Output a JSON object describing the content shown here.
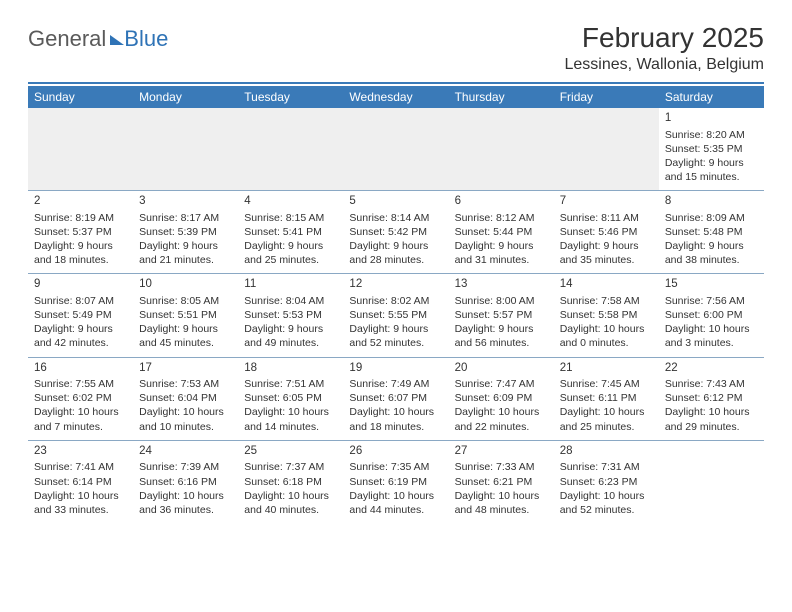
{
  "logo": {
    "part1": "General",
    "part2": "Blue"
  },
  "title": "February 2025",
  "location": "Lessines, Wallonia, Belgium",
  "day_headers": [
    "Sunday",
    "Monday",
    "Tuesday",
    "Wednesday",
    "Thursday",
    "Friday",
    "Saturday"
  ],
  "colors": {
    "header_bg": "#3a7ab8",
    "header_text": "#ffffff",
    "divider": "#3a7ab8",
    "blank_row_bg": "#efefef",
    "cell_border": "#8aa8c4",
    "logo_gray": "#5a5a5a",
    "logo_blue": "#2f73b6"
  },
  "weeks": [
    [
      {},
      {},
      {},
      {},
      {},
      {},
      {
        "n": "1",
        "sr": "Sunrise: 8:20 AM",
        "ss": "Sunset: 5:35 PM",
        "dl": "Daylight: 9 hours and 15 minutes."
      }
    ],
    [
      {
        "n": "2",
        "sr": "Sunrise: 8:19 AM",
        "ss": "Sunset: 5:37 PM",
        "dl": "Daylight: 9 hours and 18 minutes."
      },
      {
        "n": "3",
        "sr": "Sunrise: 8:17 AM",
        "ss": "Sunset: 5:39 PM",
        "dl": "Daylight: 9 hours and 21 minutes."
      },
      {
        "n": "4",
        "sr": "Sunrise: 8:15 AM",
        "ss": "Sunset: 5:41 PM",
        "dl": "Daylight: 9 hours and 25 minutes."
      },
      {
        "n": "5",
        "sr": "Sunrise: 8:14 AM",
        "ss": "Sunset: 5:42 PM",
        "dl": "Daylight: 9 hours and 28 minutes."
      },
      {
        "n": "6",
        "sr": "Sunrise: 8:12 AM",
        "ss": "Sunset: 5:44 PM",
        "dl": "Daylight: 9 hours and 31 minutes."
      },
      {
        "n": "7",
        "sr": "Sunrise: 8:11 AM",
        "ss": "Sunset: 5:46 PM",
        "dl": "Daylight: 9 hours and 35 minutes."
      },
      {
        "n": "8",
        "sr": "Sunrise: 8:09 AM",
        "ss": "Sunset: 5:48 PM",
        "dl": "Daylight: 9 hours and 38 minutes."
      }
    ],
    [
      {
        "n": "9",
        "sr": "Sunrise: 8:07 AM",
        "ss": "Sunset: 5:49 PM",
        "dl": "Daylight: 9 hours and 42 minutes."
      },
      {
        "n": "10",
        "sr": "Sunrise: 8:05 AM",
        "ss": "Sunset: 5:51 PM",
        "dl": "Daylight: 9 hours and 45 minutes."
      },
      {
        "n": "11",
        "sr": "Sunrise: 8:04 AM",
        "ss": "Sunset: 5:53 PM",
        "dl": "Daylight: 9 hours and 49 minutes."
      },
      {
        "n": "12",
        "sr": "Sunrise: 8:02 AM",
        "ss": "Sunset: 5:55 PM",
        "dl": "Daylight: 9 hours and 52 minutes."
      },
      {
        "n": "13",
        "sr": "Sunrise: 8:00 AM",
        "ss": "Sunset: 5:57 PM",
        "dl": "Daylight: 9 hours and 56 minutes."
      },
      {
        "n": "14",
        "sr": "Sunrise: 7:58 AM",
        "ss": "Sunset: 5:58 PM",
        "dl": "Daylight: 10 hours and 0 minutes."
      },
      {
        "n": "15",
        "sr": "Sunrise: 7:56 AM",
        "ss": "Sunset: 6:00 PM",
        "dl": "Daylight: 10 hours and 3 minutes."
      }
    ],
    [
      {
        "n": "16",
        "sr": "Sunrise: 7:55 AM",
        "ss": "Sunset: 6:02 PM",
        "dl": "Daylight: 10 hours and 7 minutes."
      },
      {
        "n": "17",
        "sr": "Sunrise: 7:53 AM",
        "ss": "Sunset: 6:04 PM",
        "dl": "Daylight: 10 hours and 10 minutes."
      },
      {
        "n": "18",
        "sr": "Sunrise: 7:51 AM",
        "ss": "Sunset: 6:05 PM",
        "dl": "Daylight: 10 hours and 14 minutes."
      },
      {
        "n": "19",
        "sr": "Sunrise: 7:49 AM",
        "ss": "Sunset: 6:07 PM",
        "dl": "Daylight: 10 hours and 18 minutes."
      },
      {
        "n": "20",
        "sr": "Sunrise: 7:47 AM",
        "ss": "Sunset: 6:09 PM",
        "dl": "Daylight: 10 hours and 22 minutes."
      },
      {
        "n": "21",
        "sr": "Sunrise: 7:45 AM",
        "ss": "Sunset: 6:11 PM",
        "dl": "Daylight: 10 hours and 25 minutes."
      },
      {
        "n": "22",
        "sr": "Sunrise: 7:43 AM",
        "ss": "Sunset: 6:12 PM",
        "dl": "Daylight: 10 hours and 29 minutes."
      }
    ],
    [
      {
        "n": "23",
        "sr": "Sunrise: 7:41 AM",
        "ss": "Sunset: 6:14 PM",
        "dl": "Daylight: 10 hours and 33 minutes."
      },
      {
        "n": "24",
        "sr": "Sunrise: 7:39 AM",
        "ss": "Sunset: 6:16 PM",
        "dl": "Daylight: 10 hours and 36 minutes."
      },
      {
        "n": "25",
        "sr": "Sunrise: 7:37 AM",
        "ss": "Sunset: 6:18 PM",
        "dl": "Daylight: 10 hours and 40 minutes."
      },
      {
        "n": "26",
        "sr": "Sunrise: 7:35 AM",
        "ss": "Sunset: 6:19 PM",
        "dl": "Daylight: 10 hours and 44 minutes."
      },
      {
        "n": "27",
        "sr": "Sunrise: 7:33 AM",
        "ss": "Sunset: 6:21 PM",
        "dl": "Daylight: 10 hours and 48 minutes."
      },
      {
        "n": "28",
        "sr": "Sunrise: 7:31 AM",
        "ss": "Sunset: 6:23 PM",
        "dl": "Daylight: 10 hours and 52 minutes."
      },
      {}
    ]
  ]
}
